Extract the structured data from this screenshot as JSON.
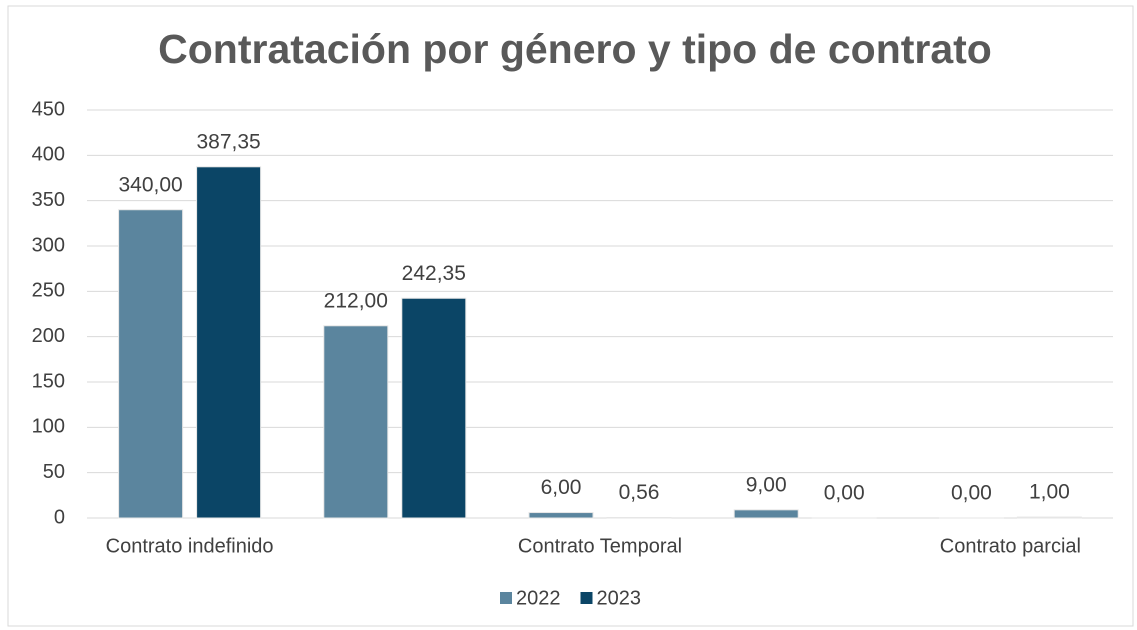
{
  "chart_data": {
    "type": "bar",
    "title": "Contratación por género y tipo de contrato",
    "categories": [
      "Contrato indefinido",
      null,
      "Contrato Temporal",
      null,
      "Contrato parcial"
    ],
    "series": [
      {
        "name": "2022",
        "color": "#5b859e",
        "values": [
          340,
          212,
          6,
          9,
          0
        ],
        "value_labels": [
          "340,00",
          "212,00",
          "6,00",
          "9,00",
          "0,00"
        ]
      },
      {
        "name": "2023",
        "color": "#0b4566",
        "values": [
          387.35,
          242.35,
          0.56,
          0,
          1
        ],
        "value_labels": [
          "387,35",
          "242,35",
          "0,56",
          "0,00",
          "1,00"
        ]
      }
    ],
    "ylim": [
      0,
      450
    ],
    "yticks": [
      0,
      50,
      100,
      150,
      200,
      250,
      300,
      350,
      400,
      450
    ],
    "grid": true,
    "legend": "bottom"
  }
}
